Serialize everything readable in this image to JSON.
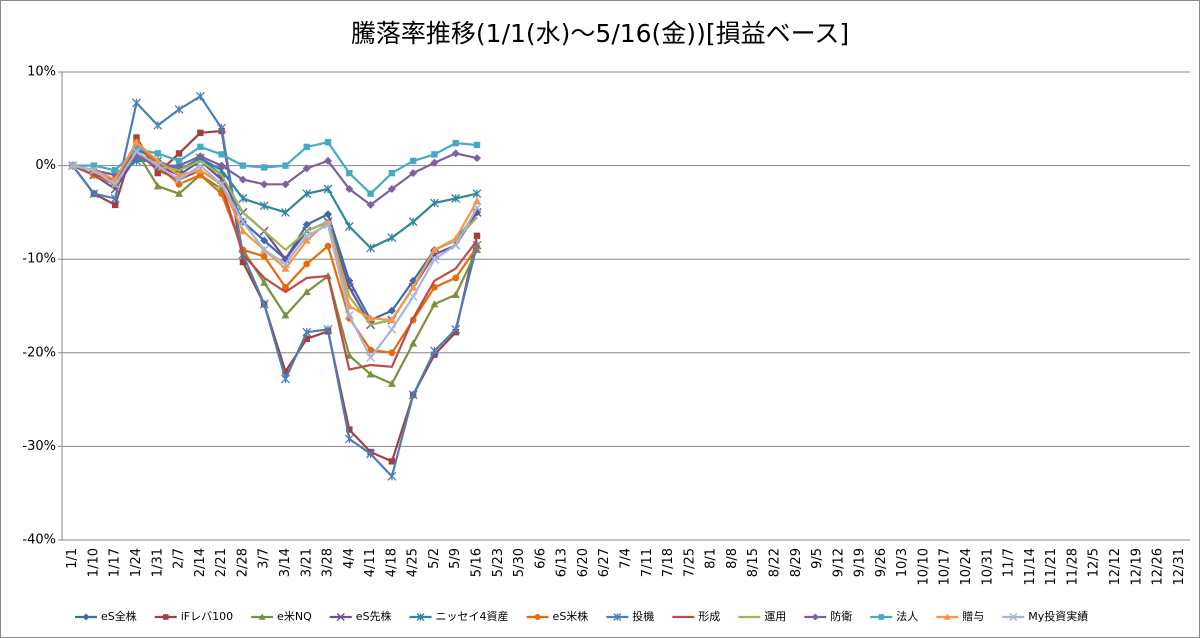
{
  "chart_data": {
    "type": "line",
    "title": "騰落率推移(1/1(水)～5/16(金))[損益ベース]",
    "categories": [
      "1/1",
      "1/10",
      "1/17",
      "1/24",
      "1/31",
      "2/7",
      "2/14",
      "2/21",
      "2/28",
      "3/7",
      "3/14",
      "3/21",
      "3/28",
      "4/4",
      "4/11",
      "4/18",
      "4/25",
      "5/2",
      "5/9",
      "5/16",
      "5/23",
      "5/30",
      "6/6",
      "6/13",
      "6/20",
      "6/27",
      "7/4",
      "7/11",
      "7/18",
      "7/25",
      "8/1",
      "8/8",
      "8/15",
      "8/22",
      "8/29",
      "9/5",
      "9/12",
      "9/19",
      "9/26",
      "10/3",
      "10/10",
      "10/17",
      "10/24",
      "10/31",
      "11/7",
      "11/14",
      "11/21",
      "11/28",
      "12/5",
      "12/12",
      "12/19",
      "12/26",
      "12/31"
    ],
    "ylim": [
      -40,
      10
    ],
    "yticks": [
      {
        "value": -40,
        "label": "-40%"
      },
      {
        "value": -30,
        "label": "-30%"
      },
      {
        "value": -20,
        "label": "-20%"
      },
      {
        "value": -10,
        "label": "-10%"
      },
      {
        "value": 0,
        "label": "0%"
      },
      {
        "value": 10,
        "label": "10%"
      }
    ],
    "grid": true,
    "legend": "bottom",
    "series": [
      {
        "name": "eS全株",
        "color": "#3c6ca8",
        "marker": "diamond",
        "values": [
          0,
          -1,
          -2,
          1.8,
          0.5,
          -0.5,
          0.8,
          -1,
          -6,
          -8,
          -10,
          -6.3,
          -5.2,
          -12.3,
          -16.5,
          -15.5,
          -12.3,
          -9,
          -8,
          -5,
          null,
          null,
          null,
          null,
          null,
          null,
          null,
          null,
          null,
          null,
          null,
          null,
          null,
          null,
          null,
          null,
          null,
          null,
          null,
          null,
          null,
          null,
          null,
          null,
          null,
          null,
          null,
          null,
          null,
          null,
          null,
          null,
          null
        ]
      },
      {
        "name": "iFレバ100",
        "color": "#a33f3c",
        "marker": "square",
        "values": [
          0,
          -3,
          -4.2,
          3,
          -0.8,
          1.3,
          3.5,
          3.7,
          -10.3,
          -14.8,
          -22,
          -18.5,
          -17.7,
          -28.2,
          -30.6,
          -31.6,
          -24.5,
          -20.2,
          -17.8,
          -7.5,
          null,
          null,
          null,
          null,
          null,
          null,
          null,
          null,
          null,
          null,
          null,
          null,
          null,
          null,
          null,
          null,
          null,
          null,
          null,
          null,
          null,
          null,
          null,
          null,
          null,
          null,
          null,
          null,
          null,
          null,
          null,
          null,
          null
        ]
      },
      {
        "name": "e米NQ",
        "color": "#77933c",
        "marker": "triangle",
        "values": [
          0,
          -1,
          -2,
          1.5,
          -2.2,
          -3,
          -1,
          -2.5,
          -9,
          -12.5,
          -16,
          -13.5,
          -11.8,
          -20.3,
          -22.3,
          -23.3,
          -19,
          -14.8,
          -13.8,
          -9,
          null,
          null,
          null,
          null,
          null,
          null,
          null,
          null,
          null,
          null,
          null,
          null,
          null,
          null,
          null,
          null,
          null,
          null,
          null,
          null,
          null,
          null,
          null,
          null,
          null,
          null,
          null,
          null,
          null,
          null,
          null,
          null,
          null
        ]
      },
      {
        "name": "eS先株",
        "color": "#6f4f9a",
        "marker": "x",
        "values": [
          0,
          -1,
          -2.5,
          1,
          0,
          -1,
          0.5,
          -1.5,
          -5,
          -7,
          -10,
          -7,
          -6,
          -13,
          -17,
          -16.5,
          -13,
          -9.5,
          -8.5,
          -5,
          null,
          null,
          null,
          null,
          null,
          null,
          null,
          null,
          null,
          null,
          null,
          null,
          null,
          null,
          null,
          null,
          null,
          null,
          null,
          null,
          null,
          null,
          null,
          null,
          null,
          null,
          null,
          null,
          null,
          null,
          null,
          null,
          null
        ]
      },
      {
        "name": "ニッセイ4資産",
        "color": "#31859c",
        "marker": "star",
        "values": [
          0,
          -0.5,
          -1,
          0.5,
          0.5,
          -0.5,
          0.8,
          -0.5,
          -3.5,
          -4.3,
          -5,
          -3,
          -2.5,
          -6.5,
          -8.8,
          -7.7,
          -6,
          -4,
          -3.5,
          -3,
          null,
          null,
          null,
          null,
          null,
          null,
          null,
          null,
          null,
          null,
          null,
          null,
          null,
          null,
          null,
          null,
          null,
          null,
          null,
          null,
          null,
          null,
          null,
          null,
          null,
          null,
          null,
          null,
          null,
          null,
          null,
          null,
          null
        ]
      },
      {
        "name": "eS米株",
        "color": "#e46c0a",
        "marker": "circle",
        "values": [
          0,
          -1,
          -2,
          2.5,
          0,
          -2,
          -1,
          -3,
          -9,
          -9.7,
          -13,
          -10.5,
          -8.6,
          -16.3,
          -19.7,
          -20,
          -16.5,
          -13,
          -12,
          -8.7,
          null,
          null,
          null,
          null,
          null,
          null,
          null,
          null,
          null,
          null,
          null,
          null,
          null,
          null,
          null,
          null,
          null,
          null,
          null,
          null,
          null,
          null,
          null,
          null,
          null,
          null,
          null,
          null,
          null,
          null,
          null,
          null,
          null
        ]
      },
      {
        "name": "投機",
        "color": "#4a7ebb",
        "marker": "star",
        "values": [
          0,
          -3,
          -3.5,
          6.7,
          4.3,
          6,
          7.4,
          4,
          -9.5,
          -14.8,
          -22.8,
          -17.8,
          -17.5,
          -29.2,
          -30.8,
          -33.2,
          -24.5,
          -19.8,
          -17.5,
          -8.5,
          null,
          null,
          null,
          null,
          null,
          null,
          null,
          null,
          null,
          null,
          null,
          null,
          null,
          null,
          null,
          null,
          null,
          null,
          null,
          null,
          null,
          null,
          null,
          null,
          null,
          null,
          null,
          null,
          null,
          null,
          null,
          null,
          null
        ]
      },
      {
        "name": "形成",
        "color": "#be4b48",
        "marker": "none",
        "values": [
          0,
          -1,
          -1.5,
          1.5,
          -0.5,
          -1.5,
          -0.5,
          -2,
          -9.5,
          -12,
          -13.5,
          -12,
          -11.8,
          -21.8,
          -21.3,
          -21.5,
          -16.3,
          -12.3,
          -11,
          -8,
          null,
          null,
          null,
          null,
          null,
          null,
          null,
          null,
          null,
          null,
          null,
          null,
          null,
          null,
          null,
          null,
          null,
          null,
          null,
          null,
          null,
          null,
          null,
          null,
          null,
          null,
          null,
          null,
          null,
          null,
          null,
          null,
          null
        ]
      },
      {
        "name": "運用",
        "color": "#98b954",
        "marker": "none",
        "values": [
          0,
          -0.5,
          -1,
          1,
          0,
          -0.5,
          0.5,
          -1,
          -5,
          -7,
          -9,
          -7,
          -6,
          -14,
          -17,
          -16.5,
          -13,
          -9,
          -8,
          -5.5,
          null,
          null,
          null,
          null,
          null,
          null,
          null,
          null,
          null,
          null,
          null,
          null,
          null,
          null,
          null,
          null,
          null,
          null,
          null,
          null,
          null,
          null,
          null,
          null,
          null,
          null,
          null,
          null,
          null,
          null,
          null,
          null,
          null
        ]
      },
      {
        "name": "防衛",
        "color": "#7d60a0",
        "marker": "diamond",
        "values": [
          0,
          -0.5,
          -1,
          1,
          0,
          0,
          1,
          0,
          -1.5,
          -2,
          -2,
          -0.3,
          0.5,
          -2.5,
          -4.2,
          -2.5,
          -0.8,
          0.3,
          1.3,
          0.8,
          null,
          null,
          null,
          null,
          null,
          null,
          null,
          null,
          null,
          null,
          null,
          null,
          null,
          null,
          null,
          null,
          null,
          null,
          null,
          null,
          null,
          null,
          null,
          null,
          null,
          null,
          null,
          null,
          null,
          null,
          null,
          null,
          null
        ]
      },
      {
        "name": "法人",
        "color": "#46aac4",
        "marker": "square",
        "values": [
          0,
          0,
          -0.5,
          1.8,
          1.3,
          0.5,
          2,
          1.2,
          0,
          -0.2,
          0,
          2,
          2.5,
          -0.8,
          -3,
          -0.8,
          0.5,
          1.2,
          2.4,
          2.2,
          null,
          null,
          null,
          null,
          null,
          null,
          null,
          null,
          null,
          null,
          null,
          null,
          null,
          null,
          null,
          null,
          null,
          null,
          null,
          null,
          null,
          null,
          null,
          null,
          null,
          null,
          null,
          null,
          null,
          null,
          null,
          null,
          null
        ]
      },
      {
        "name": "贈与",
        "color": "#f79646",
        "marker": "triangle",
        "values": [
          0,
          -0.5,
          -1.5,
          2.5,
          0.5,
          -1,
          -0.5,
          -2,
          -7,
          -9,
          -11,
          -8,
          -6,
          -15,
          -16.3,
          -16.5,
          -13,
          -9,
          -7.8,
          -3.8,
          null,
          null,
          null,
          null,
          null,
          null,
          null,
          null,
          null,
          null,
          null,
          null,
          null,
          null,
          null,
          null,
          null,
          null,
          null,
          null,
          null,
          null,
          null,
          null,
          null,
          null,
          null,
          null,
          null,
          null,
          null,
          null,
          null
        ]
      },
      {
        "name": "My投資実績",
        "color": "#a5b6dc",
        "marker": "x",
        "values": [
          0,
          -0.5,
          -2,
          1.5,
          0,
          -1.5,
          0,
          -2,
          -6,
          -9,
          -10.5,
          -7.5,
          -6.3,
          -16,
          -20.5,
          -17.5,
          -14,
          -10,
          -8.5,
          -4.5,
          null,
          null,
          null,
          null,
          null,
          null,
          null,
          null,
          null,
          null,
          null,
          null,
          null,
          null,
          null,
          null,
          null,
          null,
          null,
          null,
          null,
          null,
          null,
          null,
          null,
          null,
          null,
          null,
          null,
          null,
          null,
          null,
          null
        ]
      }
    ]
  }
}
